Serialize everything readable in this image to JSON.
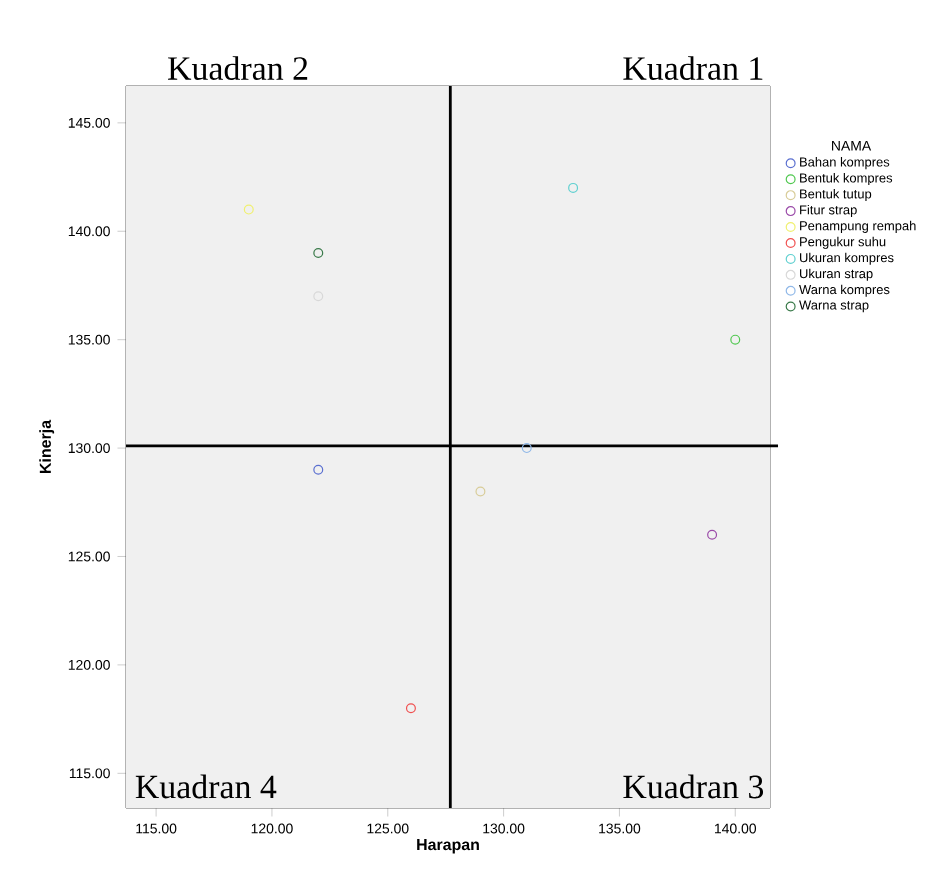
{
  "chart_data": {
    "type": "scatter",
    "xlabel": "Harapan",
    "ylabel": "Kinerja",
    "legend_title": "NAMA",
    "legend": "right",
    "marker": "circle",
    "xlim": [
      113.7,
      141.5
    ],
    "ylim": [
      113.4,
      146.7
    ],
    "xticks": [
      {
        "value": 115,
        "label": "115.00"
      },
      {
        "value": 120,
        "label": "120.00"
      },
      {
        "value": 125,
        "label": "125.00"
      },
      {
        "value": 130,
        "label": "130.00"
      },
      {
        "value": 135,
        "label": "135.00"
      },
      {
        "value": 140,
        "label": "140.00"
      }
    ],
    "yticks": [
      {
        "value": 115,
        "label": "115.00"
      },
      {
        "value": 120,
        "label": "120.00"
      },
      {
        "value": 125,
        "label": "125.00"
      },
      {
        "value": 130,
        "label": "130.00"
      },
      {
        "value": 135,
        "label": "135.00"
      },
      {
        "value": 140,
        "label": "140.00"
      },
      {
        "value": 145,
        "label": "145.00"
      }
    ],
    "series": [
      {
        "name": "Bahan kompres",
        "color": "#5a6fd0",
        "x": [
          122
        ],
        "values": [
          129
        ]
      },
      {
        "name": "Bentuk kompres",
        "color": "#50c850",
        "x": [
          140
        ],
        "values": [
          135
        ]
      },
      {
        "name": "Bentuk tutup",
        "color": "#d8cc98",
        "x": [
          129
        ],
        "values": [
          128
        ]
      },
      {
        "name": "Fitur strap",
        "color": "#9a4aa8",
        "x": [
          139
        ],
        "values": [
          126
        ]
      },
      {
        "name": "Penampung rempah",
        "color": "#f0f070",
        "x": [
          119
        ],
        "values": [
          141
        ]
      },
      {
        "name": "Pengukur suhu",
        "color": "#f05050",
        "x": [
          126
        ],
        "values": [
          118
        ]
      },
      {
        "name": "Ukuran kompres",
        "color": "#60d0d0",
        "x": [
          133
        ],
        "values": [
          142
        ]
      },
      {
        "name": "Ukuran strap",
        "color": "#d8d8d8",
        "x": [
          122
        ],
        "values": [
          137
        ]
      },
      {
        "name": "Warna kompres",
        "color": "#90b8e8",
        "x": [
          131
        ],
        "values": [
          130
        ]
      },
      {
        "name": "Warna strap",
        "color": "#3a7a4a",
        "x": [
          122
        ],
        "values": [
          139
        ]
      }
    ],
    "ref_lines": [
      {
        "axis": "x",
        "value": 127.7,
        "color": "#000000"
      },
      {
        "axis": "y",
        "value": 130.1,
        "color": "#000000"
      }
    ],
    "annotations": [
      "Kuadran 1",
      "Kuadran 2",
      "Kuadran 3",
      "Kuadran 4"
    ]
  }
}
